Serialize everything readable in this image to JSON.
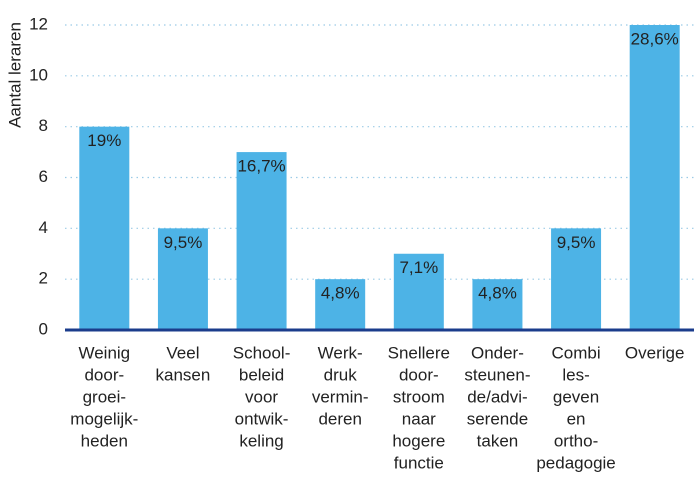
{
  "chart_data": {
    "type": "bar",
    "y_label": "Aantal leraren",
    "categories": [
      [
        "Weinig",
        "door-",
        "groei-",
        "mogelijk-",
        "heden"
      ],
      [
        "Veel",
        "kansen"
      ],
      [
        "School-",
        "beleid",
        "voor",
        "ontwik-",
        "keling"
      ],
      [
        "Werk-",
        "druk",
        "vermin-",
        "deren"
      ],
      [
        "Snellere",
        "door-",
        "stroom",
        "naar",
        "hogere",
        "functie"
      ],
      [
        "Onder-",
        "steunen-",
        "de/advi-",
        "serende",
        "taken"
      ],
      [
        "Combi",
        "les-",
        "geven",
        "en",
        "ortho-",
        "pedagogie"
      ],
      [
        "Overige"
      ]
    ],
    "values": [
      8,
      4,
      7,
      2,
      3,
      2,
      4,
      12
    ],
    "value_labels": [
      "19%",
      "9,5%",
      "16,7%",
      "4,8%",
      "7,1%",
      "4,8%",
      "9,5%",
      "28,6%"
    ],
    "color": "#4db3e6",
    "ylim": [
      0,
      12
    ],
    "yticks": [
      0,
      2,
      4,
      6,
      8,
      10,
      12
    ],
    "grid": true
  }
}
